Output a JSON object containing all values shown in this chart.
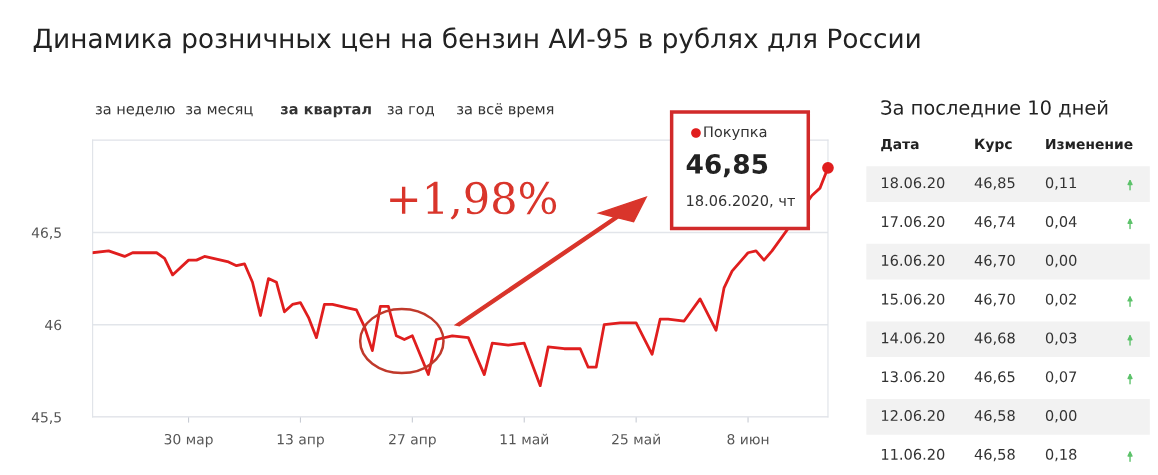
{
  "chart_data": [
    {
      "type": "line",
      "title": "Динамика розничных цен на бензин АИ-95 в рублях для России",
      "x": [
        "2020-03-18",
        "2020-03-20",
        "2020-03-22",
        "2020-03-23",
        "2020-03-26",
        "2020-03-27",
        "2020-03-28",
        "2020-03-30",
        "2020-03-31",
        "2020-04-01",
        "2020-04-04",
        "2020-04-05",
        "2020-04-06",
        "2020-04-07",
        "2020-04-08",
        "2020-04-09",
        "2020-04-10",
        "2020-04-11",
        "2020-04-12",
        "2020-04-13",
        "2020-04-14",
        "2020-04-15",
        "2020-04-16",
        "2020-04-17",
        "2020-04-19",
        "2020-04-20",
        "2020-04-21",
        "2020-04-22",
        "2020-04-23",
        "2020-04-24",
        "2020-04-25",
        "2020-04-26",
        "2020-04-27",
        "2020-04-29",
        "2020-04-30",
        "2020-05-02",
        "2020-05-04",
        "2020-05-06",
        "2020-05-07",
        "2020-05-09",
        "2020-05-11",
        "2020-05-13",
        "2020-05-14",
        "2020-05-16",
        "2020-05-18",
        "2020-05-19",
        "2020-05-20",
        "2020-05-21",
        "2020-05-23",
        "2020-05-25",
        "2020-05-27",
        "2020-05-28",
        "2020-05-29",
        "2020-05-31",
        "2020-06-02",
        "2020-06-04",
        "2020-06-05",
        "2020-06-06",
        "2020-06-08",
        "2020-06-09",
        "2020-06-10",
        "2020-06-11",
        "2020-06-16",
        "2020-06-17",
        "2020-06-18"
      ],
      "series": [
        {
          "type": "line",
          "color": "#e01e1e",
          "values": [
            46.39,
            46.4,
            46.37,
            46.39,
            46.39,
            46.36,
            46.27,
            46.35,
            46.35,
            46.37,
            46.34,
            46.32,
            46.33,
            46.23,
            46.05,
            46.25,
            46.23,
            46.07,
            46.11,
            46.12,
            46.04,
            45.93,
            46.11,
            46.11,
            46.09,
            46.08,
            45.99,
            45.86,
            46.1,
            46.1,
            45.94,
            45.92,
            45.94,
            45.73,
            45.92,
            45.94,
            45.93,
            45.73,
            45.9,
            45.89,
            45.9,
            45.67,
            45.88,
            45.87,
            45.87,
            45.77,
            45.77,
            46.0,
            46.01,
            46.01,
            45.84,
            46.03,
            46.03,
            46.02,
            46.14,
            45.97,
            46.2,
            46.29,
            46.39,
            46.4,
            46.35,
            46.4,
            46.7,
            46.74,
            46.85
          ]
        },
        {
          "type": "scatter",
          "color": "#e01e1e",
          "x": [
            "2020-06-18"
          ],
          "values": [
            46.85
          ],
          "marker": "circle"
        }
      ],
      "ylim": [
        45.5,
        47.0
      ],
      "yticks": [
        {
          "value": 45.5,
          "label": "45,5"
        },
        {
          "value": 46,
          "label": "46"
        },
        {
          "value": 46.5,
          "label": "46,5"
        }
      ],
      "xlim": [
        "2020-03-18",
        "2020-06-18"
      ],
      "xticks": [
        {
          "value": "2020-03-30",
          "label": "30 мар"
        },
        {
          "value": "2020-04-13",
          "label": "13 апр"
        },
        {
          "value": "2020-04-27",
          "label": "27 апр"
        },
        {
          "value": "2020-05-11",
          "label": "11 май"
        },
        {
          "value": "2020-05-25",
          "label": "25 май"
        },
        {
          "value": "2020-06-08",
          "label": "8 июн"
        }
      ],
      "grid": "y",
      "marker": "none",
      "line_style": "solid",
      "legend": false,
      "annotations": [
        "за неделю",
        "за месяц",
        "за квартал",
        "за год",
        "за всё время",
        "+1,98%",
        "Покупка",
        "46,85",
        "18.06.2020, чт"
      ]
    },
    {
      "type": "other",
      "title": "За последние 10 дней",
      "xlabel": "Дата",
      "categories": [
        "18.06.20",
        "17.06.20",
        "16.06.20",
        "15.06.20",
        "14.06.20",
        "13.06.20",
        "12.06.20",
        "11.06.20"
      ],
      "series": [
        {
          "name": "Курс",
          "values": [
            46.85,
            46.74,
            46.7,
            46.7,
            46.68,
            46.65,
            46.58,
            46.58
          ],
          "value_labels": [
            "46,85",
            "46,74",
            "46,70",
            "46,70",
            "46,68",
            "46,65",
            "46,58",
            "46,58"
          ]
        },
        {
          "name": "Изменение",
          "values": [
            0.11,
            0.04,
            0.0,
            0.02,
            0.03,
            0.07,
            0.0,
            0.18
          ],
          "value_labels": [
            "0,11",
            "0,04",
            "0,00",
            "0,02",
            "0,03",
            "0,07",
            "0,00",
            "0,18"
          ]
        }
      ]
    }
  ]
}
